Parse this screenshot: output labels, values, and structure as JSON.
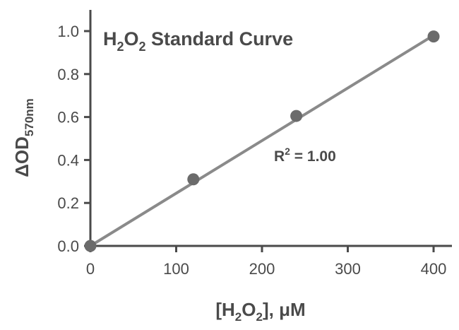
{
  "chart_data": {
    "type": "scatter",
    "title": {
      "main": "H",
      "sub1": "2",
      "mid": "O",
      "sub2": "2",
      "end": " Standard Curve"
    },
    "xlabel": {
      "pre": "[H",
      "sub1": "2",
      "mid": "O",
      "sub2": "2",
      "end": "], μM"
    },
    "ylabel": {
      "main": "ΔOD",
      "sub": "570nm"
    },
    "annotation": {
      "base": "R",
      "sup": "2",
      "rest": " = 1.00"
    },
    "xlim": [
      0,
      420
    ],
    "ylim": [
      0,
      1.08
    ],
    "x_ticks": [
      0,
      100,
      200,
      300,
      400
    ],
    "x_tick_labels": [
      "0",
      "100",
      "200",
      "300",
      "400"
    ],
    "y_ticks": [
      0,
      0.2,
      0.4,
      0.6,
      0.8,
      1.0
    ],
    "y_tick_labels": [
      "0.0",
      "0.2",
      "0.4",
      "0.6",
      "0.8",
      "1.0"
    ],
    "series": [
      {
        "x": [
          0,
          120,
          240,
          400
        ],
        "y": [
          0.0,
          0.31,
          0.605,
          0.975
        ]
      }
    ],
    "fit_line": {
      "slope": 0.00245,
      "intercept": 0.0
    },
    "grid": false,
    "colors": {
      "marker": "#6b6b6b",
      "line": "#8a8a8a",
      "axis": "#4a4a4a",
      "text": "#4a4a4a"
    }
  }
}
